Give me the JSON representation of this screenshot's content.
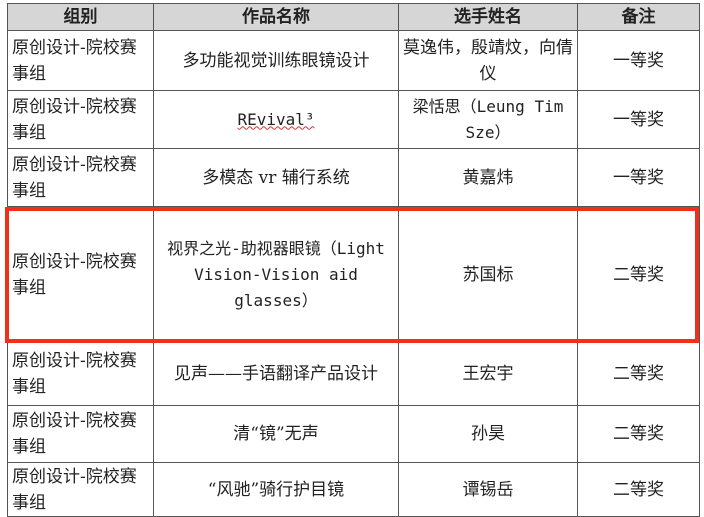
{
  "headers": [
    "组别",
    "作品名称",
    "选手姓名",
    "备注"
  ],
  "rows": [
    {
      "group": "原创设计-院校赛事组",
      "work": "多功能视觉训练眼镜设计",
      "players": "莫逸伟，殷靖炆，向倩仪",
      "note": "一等奖"
    },
    {
      "group": "原创设计-院校赛事组",
      "work": "REvival³",
      "players": "梁恬思（Leung Tim Sze）",
      "note": "一等奖"
    },
    {
      "group": "原创设计-院校赛事组",
      "work": "多模态 vr 辅行系统",
      "players": "黄嘉炜",
      "note": "一等奖"
    },
    {
      "group": "原创设计-院校赛事组",
      "work": "视界之光-助视器眼镜（Light Vision-Vision aid glasses）",
      "players": "苏国标",
      "note": "二等奖",
      "highlighted": true
    },
    {
      "group": "原创设计-院校赛事组",
      "work": "见声——手语翻译产品设计",
      "players": "王宏宇",
      "note": "二等奖"
    },
    {
      "group": "原创设计-院校赛事组",
      "work": "清“镜”无声",
      "players": "孙昊",
      "note": "二等奖"
    },
    {
      "group": "原创设计-院校赛事组",
      "work": "“风驰”骑行护目镜",
      "players": "谭锡岳",
      "note": "二等奖"
    }
  ],
  "highlight_color": "#f0301a",
  "header_bg": "#d6d6d6"
}
